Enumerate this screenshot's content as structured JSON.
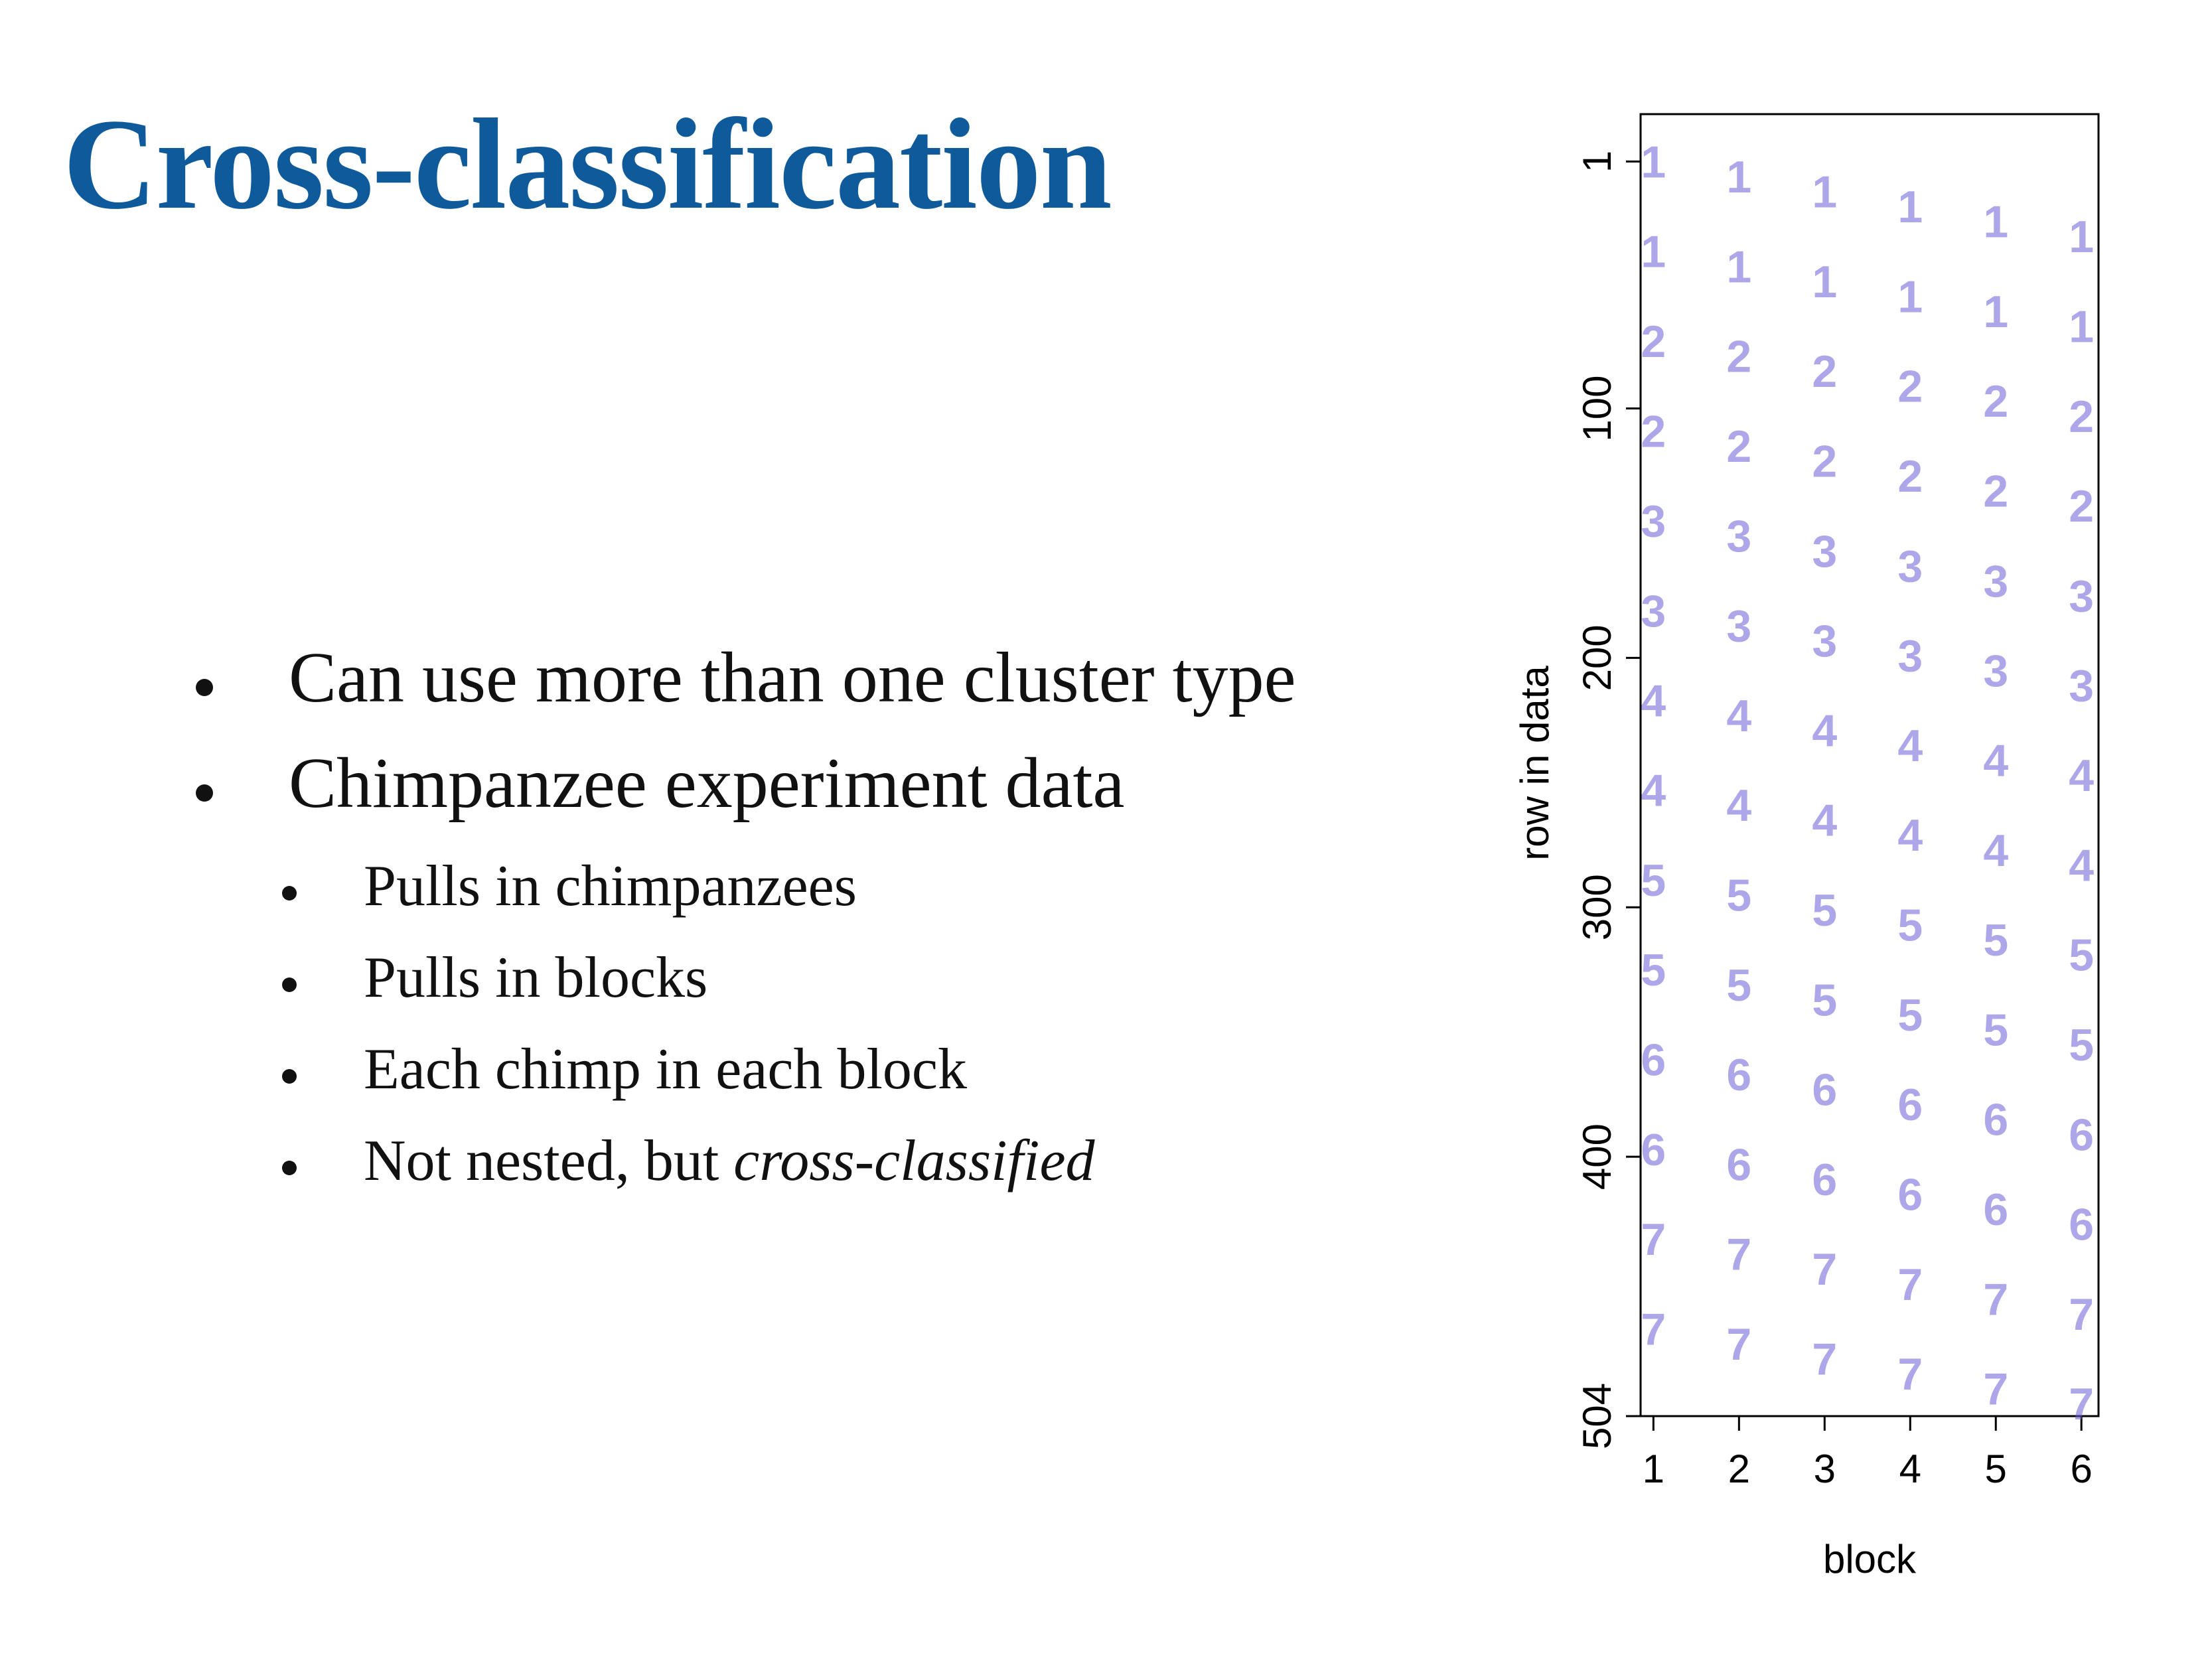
{
  "slide": {
    "title": "Cross-classification",
    "bullets": [
      {
        "text": "Can use more than one cluster type",
        "level": 1
      },
      {
        "text": "Chimpanzee experiment data",
        "level": 1
      },
      {
        "text": "Pulls in chimpanzees",
        "level": 2
      },
      {
        "text": "Pulls in blocks",
        "level": 2
      },
      {
        "text": "Each chimp in each block",
        "level": 2
      },
      {
        "text_plain": "Not nested, but ",
        "text_italic": "cross-classified",
        "level": 2
      }
    ]
  },
  "chart_data": {
    "type": "scatter",
    "title": "",
    "xlabel": "block",
    "ylabel": "row in data",
    "xlim": [
      0.85,
      6.2
    ],
    "ylim": [
      504,
      -18
    ],
    "y_reversed": true,
    "x_ticks": [
      1,
      2,
      3,
      4,
      5,
      6
    ],
    "y_ticks": [
      1,
      100,
      200,
      300,
      400,
      504
    ],
    "marker": "chimpanzee number (1-7) drawn as text glyph",
    "marker_color": "#6a5fd8",
    "marker_opacity": 0.55,
    "x": [
      1,
      2,
      3,
      4,
      5,
      6
    ],
    "series": [
      {
        "name": "1",
        "rows": [
          [
            1,
            37
          ],
          [
            7,
            43
          ],
          [
            13,
            49
          ],
          [
            19,
            55
          ],
          [
            25,
            61
          ],
          [
            31,
            67
          ]
        ]
      },
      {
        "name": "2",
        "rows": [
          [
            73,
            109
          ],
          [
            79,
            115
          ],
          [
            85,
            121
          ],
          [
            91,
            127
          ],
          [
            97,
            133
          ],
          [
            103,
            139
          ]
        ]
      },
      {
        "name": "3",
        "rows": [
          [
            145,
            181
          ],
          [
            151,
            187
          ],
          [
            157,
            193
          ],
          [
            163,
            199
          ],
          [
            169,
            205
          ],
          [
            175,
            211
          ]
        ]
      },
      {
        "name": "4",
        "rows": [
          [
            217,
            253
          ],
          [
            223,
            259
          ],
          [
            229,
            265
          ],
          [
            235,
            271
          ],
          [
            241,
            277
          ],
          [
            247,
            283
          ]
        ]
      },
      {
        "name": "5",
        "rows": [
          [
            289,
            325
          ],
          [
            295,
            331
          ],
          [
            301,
            337
          ],
          [
            307,
            343
          ],
          [
            313,
            349
          ],
          [
            319,
            355
          ]
        ]
      },
      {
        "name": "6",
        "rows": [
          [
            361,
            397
          ],
          [
            367,
            403
          ],
          [
            373,
            409
          ],
          [
            379,
            415
          ],
          [
            385,
            421
          ],
          [
            391,
            427
          ]
        ]
      },
      {
        "name": "7",
        "rows": [
          [
            433,
            469
          ],
          [
            439,
            475
          ],
          [
            445,
            481
          ],
          [
            451,
            487
          ],
          [
            457,
            493
          ],
          [
            463,
            499
          ]
        ]
      }
    ],
    "grid": false,
    "legend": "none"
  }
}
